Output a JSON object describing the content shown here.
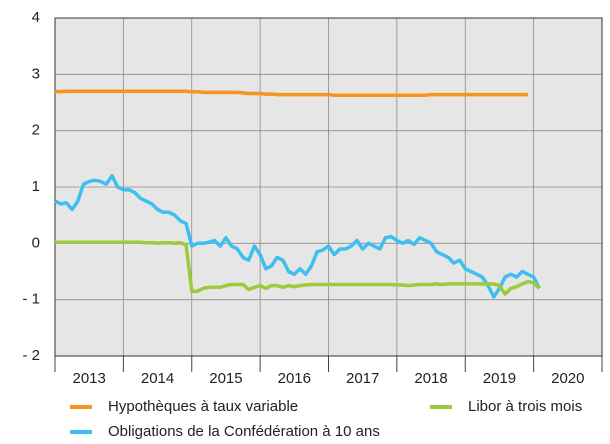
{
  "chart_data": {
    "type": "line",
    "x": [
      2013,
      2013.083,
      2013.167,
      2013.25,
      2013.333,
      2013.417,
      2013.5,
      2013.583,
      2013.667,
      2013.75,
      2013.833,
      2013.917,
      2014,
      2014.083,
      2014.167,
      2014.25,
      2014.333,
      2014.417,
      2014.5,
      2014.583,
      2014.667,
      2014.75,
      2014.833,
      2014.917,
      2015,
      2015.083,
      2015.167,
      2015.25,
      2015.333,
      2015.417,
      2015.5,
      2015.583,
      2015.667,
      2015.75,
      2015.833,
      2015.917,
      2016,
      2016.083,
      2016.167,
      2016.25,
      2016.333,
      2016.417,
      2016.5,
      2016.583,
      2016.667,
      2016.75,
      2016.833,
      2016.917,
      2017,
      2017.083,
      2017.167,
      2017.25,
      2017.333,
      2017.417,
      2017.5,
      2017.583,
      2017.667,
      2017.75,
      2017.833,
      2017.917,
      2018,
      2018.083,
      2018.167,
      2018.25,
      2018.333,
      2018.417,
      2018.5,
      2018.583,
      2018.667,
      2018.75,
      2018.833,
      2018.917,
      2019,
      2019.083,
      2019.167,
      2019.25,
      2019.333,
      2019.417,
      2019.5,
      2019.583,
      2019.667,
      2019.75,
      2019.833,
      2019.917,
      2020,
      2020.083
    ],
    "series": [
      {
        "name": "Hypothèques à taux variable",
        "color": "#f7941d",
        "values": [
          2.7,
          2.69,
          2.7,
          2.7,
          2.7,
          2.7,
          2.7,
          2.7,
          2.7,
          2.7,
          2.7,
          2.7,
          2.7,
          2.7,
          2.7,
          2.7,
          2.7,
          2.7,
          2.7,
          2.7,
          2.7,
          2.7,
          2.7,
          2.7,
          2.69,
          2.69,
          2.68,
          2.68,
          2.68,
          2.68,
          2.68,
          2.68,
          2.68,
          2.67,
          2.66,
          2.66,
          2.66,
          2.65,
          2.65,
          2.64,
          2.64,
          2.64,
          2.64,
          2.64,
          2.64,
          2.64,
          2.64,
          2.64,
          2.64,
          2.63,
          2.63,
          2.63,
          2.63,
          2.63,
          2.63,
          2.63,
          2.63,
          2.63,
          2.63,
          2.63,
          2.63,
          2.63,
          2.63,
          2.63,
          2.63,
          2.63,
          2.64,
          2.64,
          2.64,
          2.64,
          2.64,
          2.64,
          2.64,
          2.64,
          2.64,
          2.64,
          2.64,
          2.64,
          2.64,
          2.64,
          2.64,
          2.64,
          2.64,
          2.64,
          null,
          null
        ]
      },
      {
        "name": "Libor à trois mois",
        "color": "#9dc93b",
        "values": [
          0.02,
          0.02,
          0.02,
          0.02,
          0.02,
          0.02,
          0.02,
          0.02,
          0.02,
          0.02,
          0.02,
          0.02,
          0.02,
          0.02,
          0.02,
          0.02,
          0.01,
          0.01,
          0.0,
          0.01,
          0.01,
          0.0,
          0.01,
          -0.03,
          -0.85,
          -0.85,
          -0.8,
          -0.78,
          -0.78,
          -0.78,
          -0.75,
          -0.73,
          -0.73,
          -0.73,
          -0.82,
          -0.78,
          -0.75,
          -0.8,
          -0.75,
          -0.75,
          -0.78,
          -0.75,
          -0.77,
          -0.75,
          -0.74,
          -0.73,
          -0.73,
          -0.73,
          -0.73,
          -0.73,
          -0.73,
          -0.73,
          -0.73,
          -0.73,
          -0.73,
          -0.73,
          -0.73,
          -0.73,
          -0.73,
          -0.73,
          -0.74,
          -0.74,
          -0.75,
          -0.74,
          -0.73,
          -0.73,
          -0.73,
          -0.72,
          -0.73,
          -0.72,
          -0.72,
          -0.72,
          -0.72,
          -0.72,
          -0.72,
          -0.72,
          -0.72,
          -0.72,
          -0.75,
          -0.9,
          -0.8,
          -0.77,
          -0.72,
          -0.68,
          -0.7,
          -0.8
        ]
      },
      {
        "name": "Obligations de la Confédération à 10 ans",
        "color": "#3dbfef",
        "values": [
          0.75,
          0.7,
          0.72,
          0.6,
          0.75,
          1.05,
          1.1,
          1.12,
          1.1,
          1.05,
          1.2,
          1.0,
          0.95,
          0.95,
          0.9,
          0.8,
          0.75,
          0.7,
          0.6,
          0.55,
          0.55,
          0.5,
          0.4,
          0.35,
          -0.05,
          0.0,
          0.0,
          0.02,
          0.05,
          -0.05,
          0.1,
          -0.05,
          -0.1,
          -0.25,
          -0.3,
          -0.05,
          -0.2,
          -0.45,
          -0.4,
          -0.25,
          -0.3,
          -0.5,
          -0.55,
          -0.45,
          -0.55,
          -0.4,
          -0.15,
          -0.12,
          -0.05,
          -0.2,
          -0.1,
          -0.1,
          -0.05,
          0.05,
          -0.1,
          0.0,
          -0.05,
          -0.1,
          0.1,
          0.12,
          0.05,
          0.0,
          0.05,
          -0.02,
          0.1,
          0.05,
          0.0,
          -0.15,
          -0.2,
          -0.25,
          -0.35,
          -0.3,
          -0.45,
          -0.5,
          -0.55,
          -0.6,
          -0.75,
          -0.95,
          -0.8,
          -0.6,
          -0.55,
          -0.6,
          -0.5,
          -0.55,
          -0.6,
          -0.8
        ]
      }
    ],
    "xlim": [
      2013,
      2021
    ],
    "xticks": [
      2013,
      2014,
      2015,
      2016,
      2017,
      2018,
      2019,
      2020
    ],
    "ylim": [
      -2,
      4
    ],
    "yticks": [
      {
        "value": -2,
        "label": "- 2"
      },
      {
        "value": -1,
        "label": "- 1"
      },
      0,
      1,
      2,
      3,
      4
    ],
    "grid": true
  }
}
